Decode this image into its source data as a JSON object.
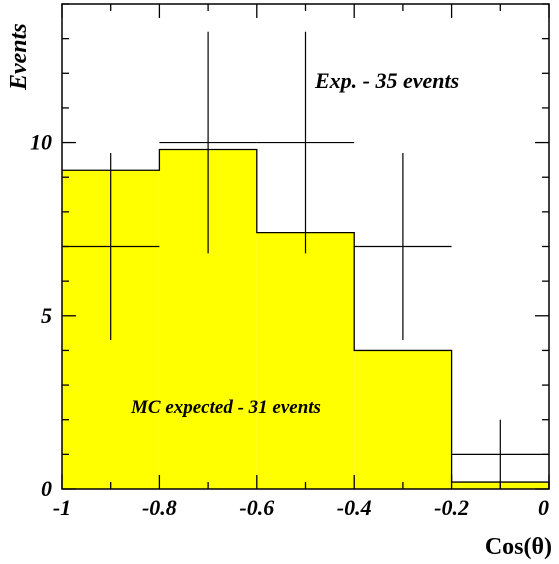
{
  "chart_data": {
    "type": "bar",
    "xlabel": "Cos(θ)",
    "ylabel": "Events",
    "xlim": [
      -1,
      0
    ],
    "ylim": [
      0,
      14
    ],
    "x_ticks": [
      "-1",
      "-0.8",
      "-0.6",
      "-0.4",
      "-0.2",
      "0"
    ],
    "y_ticks": [
      "0",
      "5",
      "10"
    ],
    "bin_edges": [
      -1,
      -0.8,
      -0.6,
      -0.4,
      -0.2,
      0
    ],
    "series": [
      {
        "name": "MC expected - 31 events",
        "style": "filled-histogram",
        "color": "#ffff00",
        "values": [
          9.2,
          9.8,
          7.4,
          4.0,
          0.2
        ]
      },
      {
        "name": "Exp. - 35 events",
        "style": "points-with-errors",
        "color": "#000000",
        "x": [
          -0.9,
          -0.7,
          -0.5,
          -0.3,
          -0.1
        ],
        "values": [
          7,
          10,
          10,
          7,
          1
        ],
        "y_low": [
          4.3,
          6.8,
          6.8,
          4.3,
          0.0
        ],
        "y_high": [
          9.7,
          13.2,
          13.2,
          9.7,
          2.0
        ]
      }
    ],
    "annotations": [
      "Exp. - 35 events",
      "MC expected - 31 events"
    ],
    "grid": false
  }
}
